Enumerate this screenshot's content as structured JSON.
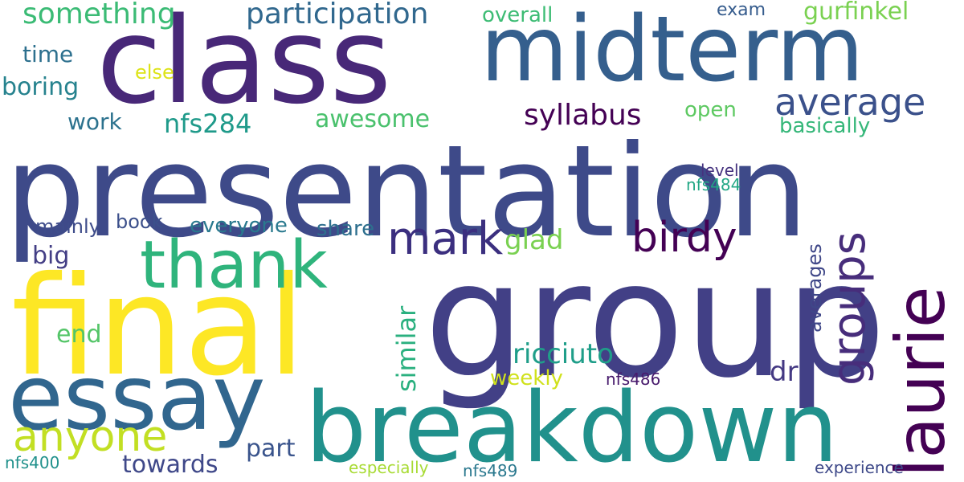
{
  "words": [
    {
      "text": "presentation",
      "color": "#3e4a89"
    },
    {
      "text": "group",
      "color": "#424086"
    },
    {
      "text": "final",
      "color": "#fde725"
    },
    {
      "text": "class",
      "color": "#482878"
    },
    {
      "text": "midterm",
      "color": "#355f8d"
    },
    {
      "text": "breakdown",
      "color": "#21918c"
    },
    {
      "text": "essay",
      "color": "#31668e"
    },
    {
      "text": "thank",
      "color": "#2fb47c"
    },
    {
      "text": "laurie",
      "color": "#440154"
    },
    {
      "text": "birdy",
      "color": "#440154"
    },
    {
      "text": "anyone",
      "color": "#c2df23"
    },
    {
      "text": "mark",
      "color": "#3b2f7f"
    },
    {
      "text": "groups",
      "color": "#472d7b"
    },
    {
      "text": "average",
      "color": "#3b518b"
    },
    {
      "text": "participation",
      "color": "#31688e"
    },
    {
      "text": "syllabus",
      "color": "#440154"
    },
    {
      "text": "something",
      "color": "#3bbb75"
    },
    {
      "text": "gurfinkel",
      "color": "#7ad151"
    },
    {
      "text": "ricciuto",
      "color": "#1f9e89"
    },
    {
      "text": "nfs284",
      "color": "#1f9a8a"
    },
    {
      "text": "similar",
      "color": "#2ab07f"
    },
    {
      "text": "glad",
      "color": "#7ad151"
    },
    {
      "text": "awesome",
      "color": "#4ac16d"
    },
    {
      "text": "boring",
      "color": "#26828e"
    },
    {
      "text": "work",
      "color": "#2c728e"
    },
    {
      "text": "time",
      "color": "#2d708e"
    },
    {
      "text": "averages",
      "color": "#3f4788"
    },
    {
      "text": "basically",
      "color": "#35b779"
    },
    {
      "text": "towards",
      "color": "#3f4889"
    },
    {
      "text": "part",
      "color": "#3a548c"
    },
    {
      "text": "dr",
      "color": "#443983"
    },
    {
      "text": "end",
      "color": "#54c568"
    },
    {
      "text": "big",
      "color": "#433e85"
    },
    {
      "text": "overall",
      "color": "#3dbc74"
    },
    {
      "text": "open",
      "color": "#5ec962"
    },
    {
      "text": "else",
      "color": "#dde318"
    },
    {
      "text": "weekly",
      "color": "#d0e11c"
    },
    {
      "text": "share",
      "color": "#2e6f8e"
    },
    {
      "text": "everyone",
      "color": "#29798e"
    },
    {
      "text": "mainly",
      "color": "#3e4c8a"
    },
    {
      "text": "book",
      "color": "#3c508b"
    },
    {
      "text": "exam",
      "color": "#365c8d"
    },
    {
      "text": "level",
      "color": "#46337f"
    },
    {
      "text": "nfs484",
      "color": "#22a785"
    },
    {
      "text": "nfs486",
      "color": "#481b6d"
    },
    {
      "text": "nfs400",
      "color": "#21918c"
    },
    {
      "text": "nfs489",
      "color": "#2a788e"
    },
    {
      "text": "especially",
      "color": "#a8db34"
    },
    {
      "text": "experience",
      "color": "#3e4989"
    }
  ]
}
